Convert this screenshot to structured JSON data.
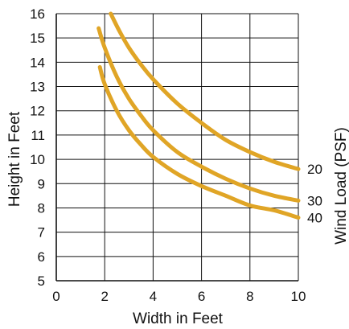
{
  "chart_data": {
    "type": "line",
    "title": "",
    "xlabel": "Width in Feet",
    "ylabel": "Height in Feet",
    "right_label": "Wind Load (PSF)",
    "xlim": [
      0,
      10
    ],
    "ylim": [
      5,
      16
    ],
    "xticks": [
      0,
      2,
      4,
      6,
      8,
      10
    ],
    "yticks": [
      5,
      6,
      7,
      8,
      9,
      10,
      11,
      12,
      13,
      14,
      15,
      16
    ],
    "grid": true,
    "legend": "none",
    "line_color": "#E0A526",
    "series": [
      {
        "label": "20",
        "x": [
          2.25,
          2.6,
          3.0,
          3.5,
          4.0,
          5.0,
          6.0,
          7.0,
          8.0,
          9.0,
          10.0
        ],
        "y": [
          16.0,
          15.3,
          14.6,
          13.9,
          13.3,
          12.3,
          11.5,
          10.8,
          10.3,
          9.9,
          9.6
        ]
      },
      {
        "label": "30",
        "x": [
          1.75,
          2.0,
          2.5,
          3.0,
          3.5,
          4.0,
          5.0,
          6.0,
          7.0,
          8.0,
          9.0,
          10.0
        ],
        "y": [
          15.4,
          14.6,
          13.4,
          12.5,
          11.8,
          11.2,
          10.3,
          9.7,
          9.2,
          8.8,
          8.5,
          8.3
        ]
      },
      {
        "label": "40",
        "x": [
          1.8,
          2.0,
          2.5,
          3.0,
          3.5,
          4.0,
          5.0,
          6.0,
          7.0,
          8.0,
          9.0,
          10.0
        ],
        "y": [
          13.8,
          13.1,
          12.0,
          11.2,
          10.6,
          10.1,
          9.4,
          8.9,
          8.5,
          8.1,
          7.9,
          7.6
        ]
      }
    ]
  }
}
